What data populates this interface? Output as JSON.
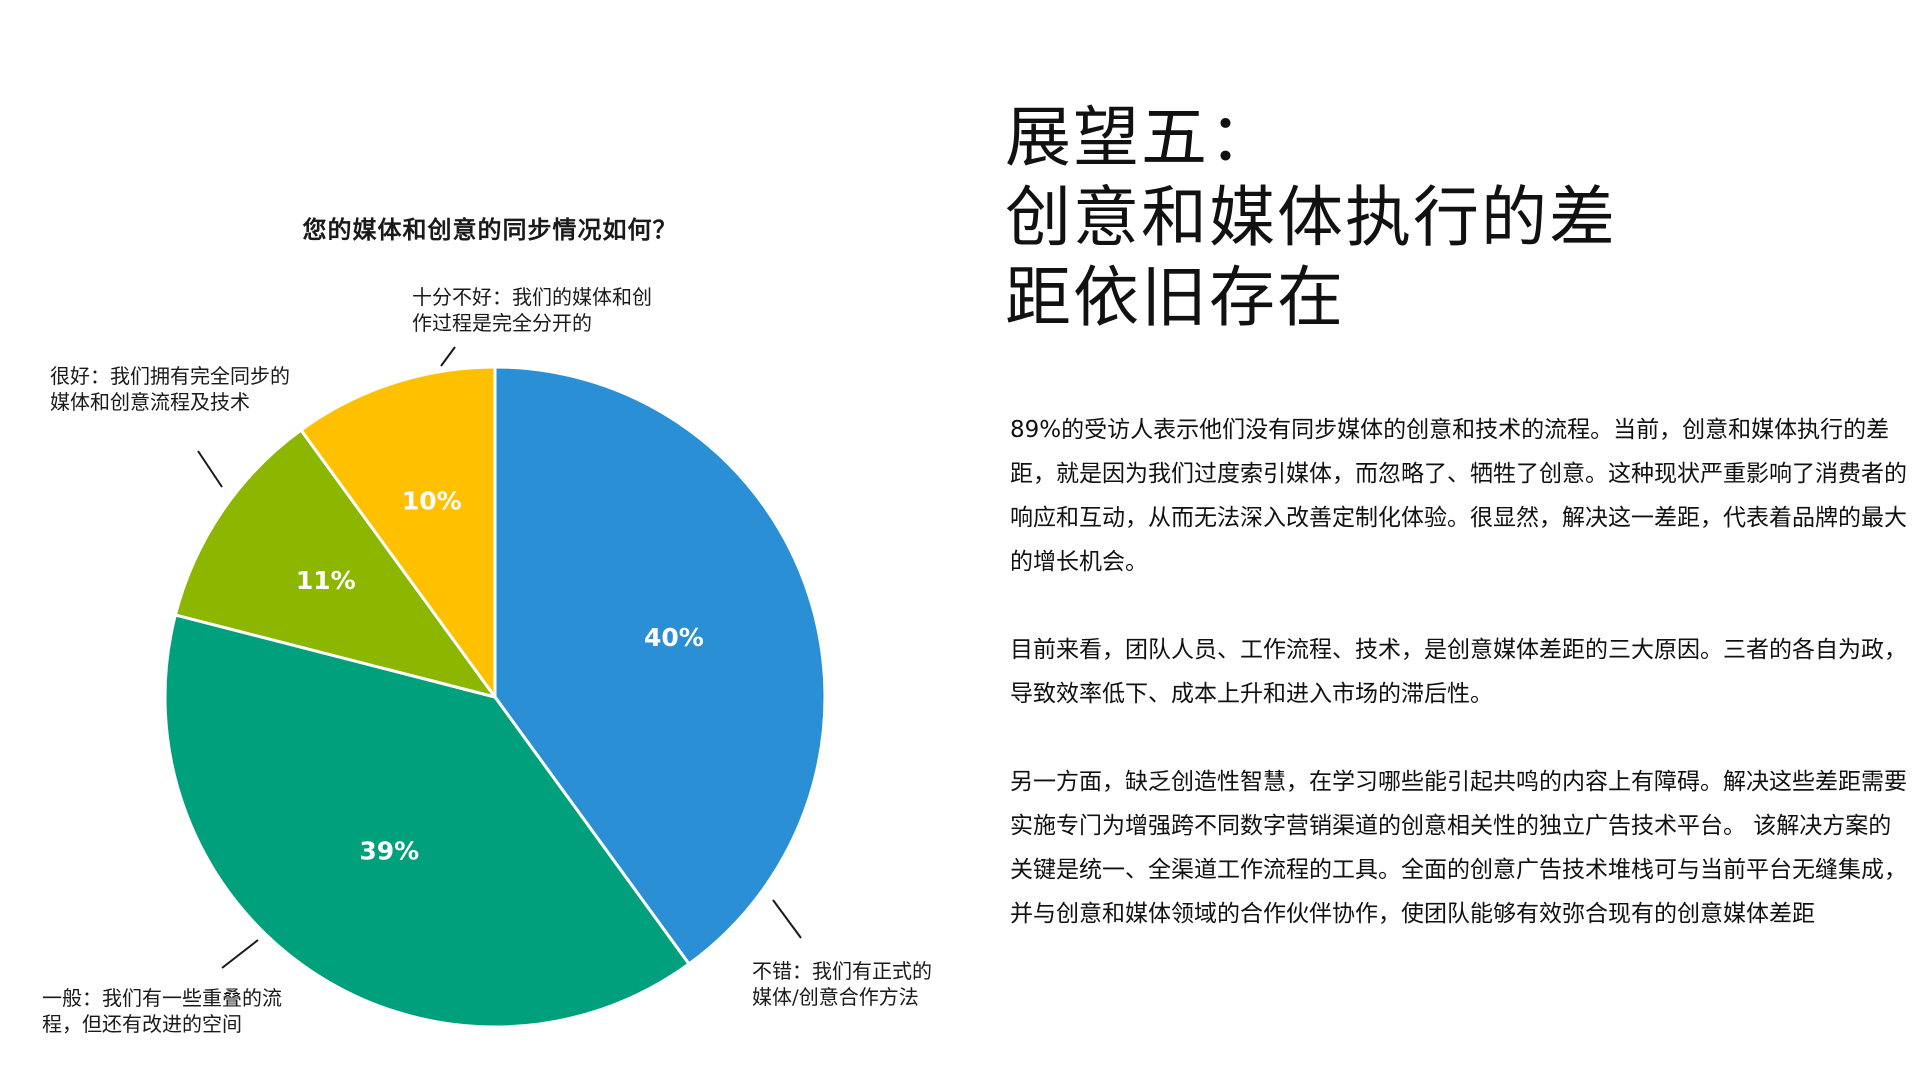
{
  "chart_data": {
    "type": "pie",
    "title": "您的媒体和创意的同步情况如何？",
    "categories": [
      "不错：我们有正式的媒体/创意合作方法",
      "一般：我们有一些重叠的流程，但还有改进的空间",
      "很好：我们拥有完全同步的媒体和创意流程及技术",
      "十分不好：我们的媒体和创作过程是完全分开的"
    ],
    "values": [
      40,
      39,
      11,
      10
    ],
    "value_labels": [
      "40%",
      "39%",
      "11%",
      "10%"
    ],
    "colors": [
      "#2B8FD6",
      "#00A07D",
      "#8DB600",
      "#FFC000"
    ],
    "label_lines": [
      [
        "不错：我们有正式的",
        "媒体/创意合作方法"
      ],
      [
        "一般：我们有一些重叠的流",
        "程，但还有改进的空间"
      ],
      [
        "很好：我们拥有完全同步的",
        "媒体和创意流程及技术"
      ],
      [
        "十分不好：我们的媒体和创",
        "作过程是完全分开的"
      ]
    ]
  },
  "heading": {
    "lines": [
      "展望五：",
      "创意和媒体执行的差",
      "距依旧存在"
    ]
  },
  "body": {
    "paragraphs": [
      "89%的受访人表示他们没有同步媒体的创意和技术的流程。当前，创意和媒体执行的差距，就是因为我们过度索引媒体，而忽略了、牺牲了创意。这种现状严重影响了消费者的响应和互动，从而无法深入改善定制化体验。很显然，解决这一差距，代表着品牌的最大的增长机会。",
      "目前来看，团队人员、工作流程、技术，是创意媒体差距的三大原因。三者的各自为政，导致效率低下、成本上升和进入市场的滞后性。",
      "另一方面，缺乏创造性智慧，在学习哪些能引起共鸣的内容上有障碍。解决这些差距需要实施专门为增强跨不同数字营销渠道的创意相关性的独立广告技术平台。 该解决方案的关键是统一、全渠道工作流程的工具。全面的创意广告技术堆栈可与当前平台无缝集成，并与创意和媒体领域的合作伙伴协作，使团队能够有效弥合现有的创意媒体差距"
    ]
  }
}
